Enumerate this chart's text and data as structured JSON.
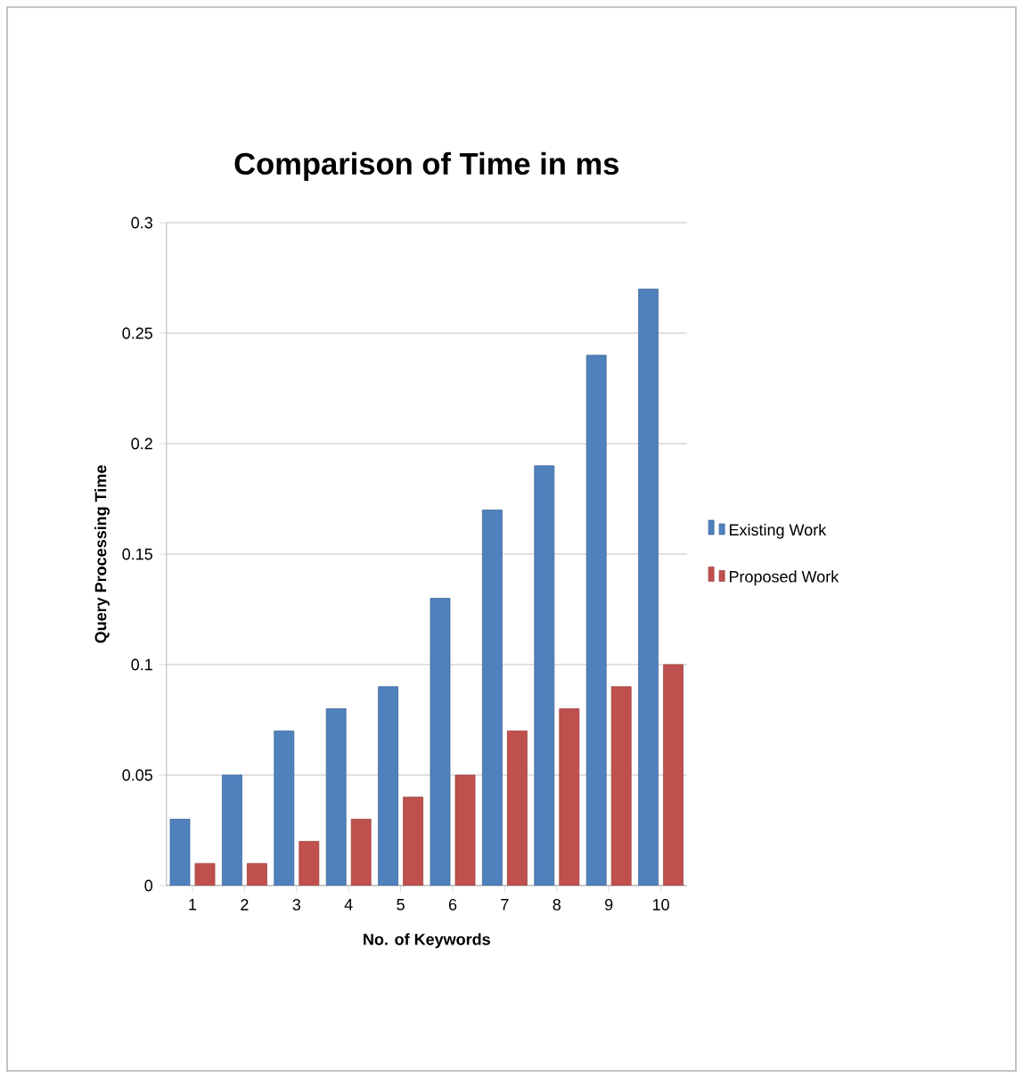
{
  "chart_data": {
    "type": "bar",
    "title": "Comparison of Time in ms",
    "xlabel": "No. of Keywords",
    "ylabel": "Query Processing Time",
    "categories": [
      "1",
      "2",
      "3",
      "4",
      "5",
      "6",
      "7",
      "8",
      "9",
      "10"
    ],
    "series": [
      {
        "name": "Existing Work",
        "color": "#4f81bd",
        "values": [
          0.03,
          0.05,
          0.07,
          0.08,
          0.09,
          0.13,
          0.17,
          0.19,
          0.24,
          0.27
        ]
      },
      {
        "name": "Proposed Work",
        "color": "#c0504d",
        "values": [
          0.01,
          0.01,
          0.02,
          0.03,
          0.04,
          0.05,
          0.07,
          0.08,
          0.09,
          0.1
        ]
      }
    ],
    "ylim": [
      0,
      0.3
    ],
    "yticks": [
      0,
      0.05,
      0.1,
      0.15,
      0.2,
      0.25,
      0.3
    ],
    "grid": "y",
    "legend": "right"
  }
}
